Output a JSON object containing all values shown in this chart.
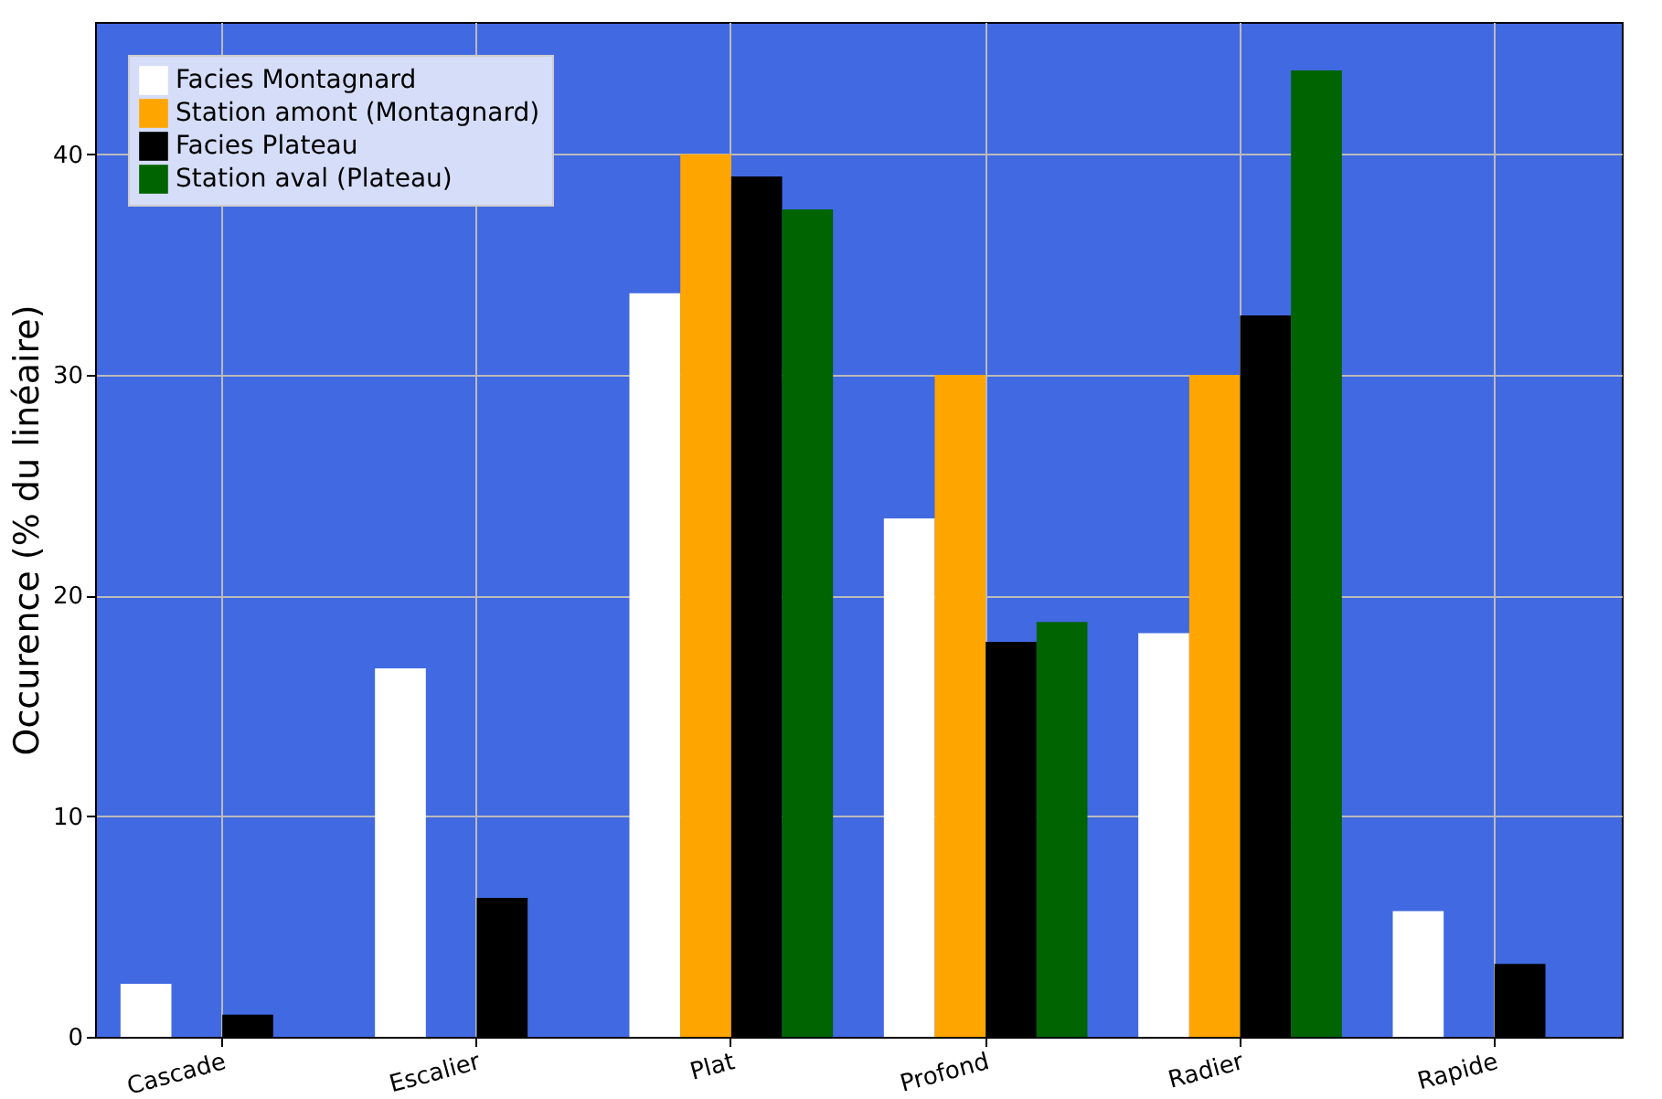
{
  "chart_data": {
    "type": "bar",
    "ylabel": "Occurence (% du linéaire)",
    "categories": [
      "Cascade",
      "Escalier",
      "Plat",
      "Profond",
      "Radier",
      "Rapide"
    ],
    "series": [
      {
        "name": "Facies Montagnard",
        "color": "#ffffff",
        "values": [
          2.4,
          16.7,
          33.7,
          23.5,
          18.3,
          5.7
        ]
      },
      {
        "name": "Station amont (Montagnard)",
        "color": "#ffa500",
        "values": [
          null,
          null,
          40,
          30,
          30,
          null
        ]
      },
      {
        "name": "Facies Plateau",
        "color": "#000000",
        "values": [
          1.0,
          6.3,
          39.0,
          17.9,
          32.7,
          3.3
        ]
      },
      {
        "name": "Station aval (Plateau)",
        "color": "#006400",
        "values": [
          null,
          null,
          37.5,
          18.8,
          43.8,
          null
        ]
      }
    ],
    "ylim": [
      0,
      46
    ],
    "yticks": [
      0,
      10,
      20,
      30,
      40
    ],
    "grid": true,
    "legend": "top left"
  }
}
